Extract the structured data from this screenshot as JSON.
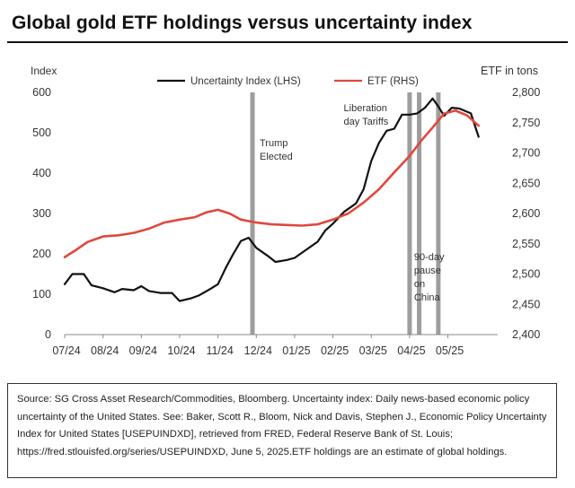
{
  "title": "Global gold ETF holdings versus uncertainty index",
  "source": "Source: SG Cross Asset Research/Commodities, Bloomberg. Uncertainty index: Daily news-based economic policy uncertainty of the United States. See: Baker, Scott R., Bloom, Nick and Davis, Stephen J., Economic Policy Uncertainty Index for United States [USEPUINDXD], retrieved from FRED, Federal Reserve Bank of St. Louis; https://fred.stlouisfed.org/series/USEPUINDXD, June 5, 2025.ETF holdings are an estimate of global holdings.",
  "chart_data": {
    "type": "line",
    "title": "Global gold ETF holdings versus uncertainty index",
    "ylabel_left": "Index",
    "ylabel_right": "ETF in tons",
    "ylim_left": [
      0,
      600
    ],
    "ylim_right": [
      2400,
      2800
    ],
    "yticks_left": [
      "0",
      "100",
      "200",
      "300",
      "400",
      "500",
      "600"
    ],
    "yticks_right": [
      "2,400",
      "2,450",
      "2,500",
      "2,550",
      "2,600",
      "2,650",
      "2,700",
      "2,750",
      "2,800"
    ],
    "xlim": [
      0,
      11.3
    ],
    "xticks": [
      {
        "pos": 0,
        "label": "07/24"
      },
      {
        "pos": 1,
        "label": "08/24"
      },
      {
        "pos": 2,
        "label": "09/24"
      },
      {
        "pos": 3,
        "label": "10/24"
      },
      {
        "pos": 4,
        "label": "11/24"
      },
      {
        "pos": 5,
        "label": "12/24"
      },
      {
        "pos": 6,
        "label": "01/25"
      },
      {
        "pos": 7,
        "label": "02/25"
      },
      {
        "pos": 8,
        "label": "03/25"
      },
      {
        "pos": 9,
        "label": "04/25"
      },
      {
        "pos": 10,
        "label": "05/25"
      }
    ],
    "grid": false,
    "legend": "top",
    "series": [
      {
        "name": "Uncertainty Index (LHS)",
        "axis": "left",
        "color": "#111111",
        "x": [
          0,
          0.2,
          0.5,
          0.7,
          1.0,
          1.3,
          1.5,
          1.8,
          2.0,
          2.2,
          2.5,
          2.8,
          3.0,
          3.3,
          3.5,
          3.8,
          4.0,
          4.2,
          4.4,
          4.6,
          4.8,
          5.0,
          5.3,
          5.5,
          5.8,
          6.0,
          6.3,
          6.6,
          6.8,
          7.0,
          7.3,
          7.6,
          7.8,
          8.0,
          8.2,
          8.4,
          8.6,
          8.8,
          9.0,
          9.2,
          9.4,
          9.6,
          9.75,
          9.9,
          10.1,
          10.3,
          10.6,
          10.8
        ],
        "values": [
          125,
          150,
          150,
          122,
          115,
          105,
          113,
          110,
          120,
          108,
          103,
          103,
          83,
          90,
          97,
          113,
          125,
          165,
          200,
          232,
          240,
          215,
          195,
          180,
          185,
          190,
          210,
          230,
          258,
          275,
          305,
          325,
          360,
          430,
          475,
          505,
          510,
          545,
          545,
          548,
          562,
          585,
          565,
          542,
          562,
          560,
          548,
          490
        ]
      },
      {
        "name": "ETF (RHS)",
        "axis": "right",
        "color": "#e0483c",
        "x": [
          0,
          0.3,
          0.6,
          1.0,
          1.4,
          1.8,
          2.2,
          2.6,
          3.0,
          3.4,
          3.7,
          4.0,
          4.3,
          4.6,
          5.0,
          5.4,
          5.8,
          6.2,
          6.6,
          7.0,
          7.4,
          7.8,
          8.2,
          8.6,
          9.0,
          9.3,
          9.6,
          9.9,
          10.2,
          10.5,
          10.8
        ],
        "values": [
          2528,
          2540,
          2553,
          2562,
          2564,
          2568,
          2575,
          2585,
          2590,
          2594,
          2602,
          2606,
          2600,
          2590,
          2585,
          2582,
          2581,
          2580,
          2582,
          2590,
          2600,
          2618,
          2640,
          2668,
          2695,
          2720,
          2742,
          2765,
          2770,
          2762,
          2745
        ]
      }
    ],
    "annotations": [
      {
        "x": 4.9,
        "text": [
          "Trump",
          "Elected"
        ]
      },
      {
        "x": 9.25,
        "text": [
          "Liberation",
          "day Tariffs"
        ]
      },
      {
        "x": 9.0,
        "text": [
          "90-day",
          "pause",
          "on",
          "China"
        ]
      }
    ]
  }
}
